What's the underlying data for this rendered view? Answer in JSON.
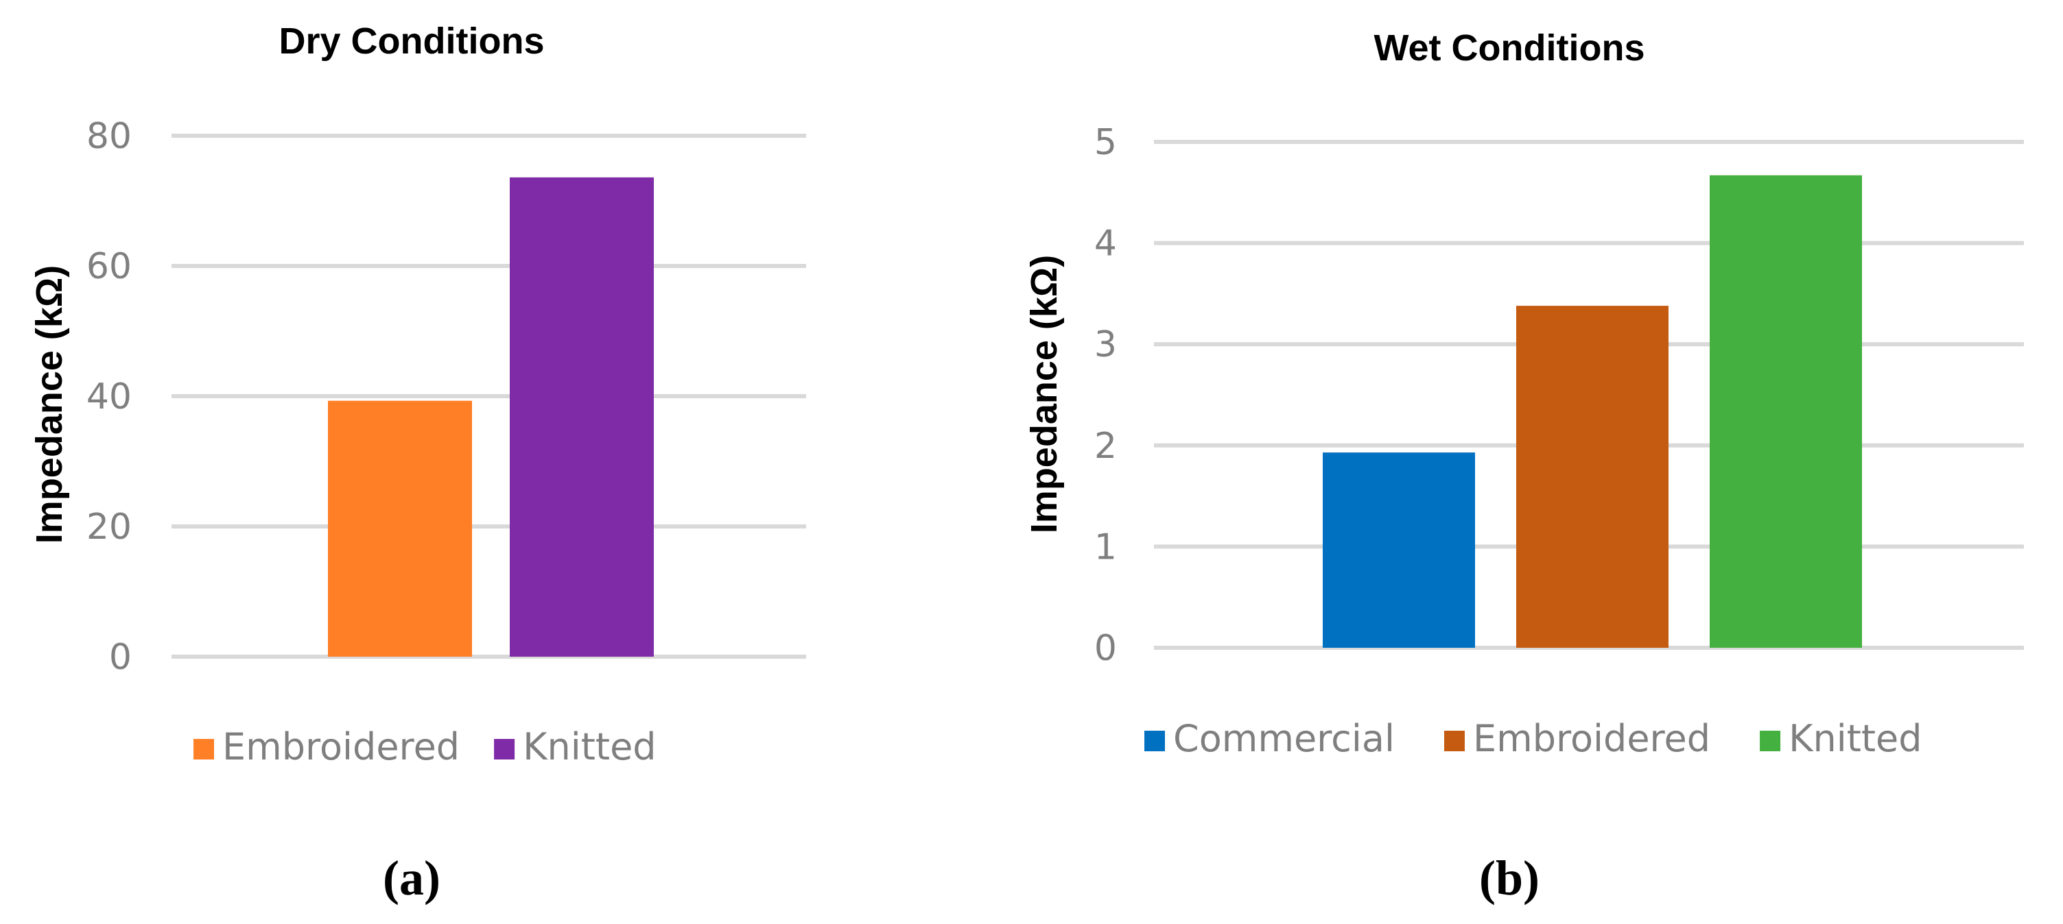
{
  "chart_data": [
    {
      "type": "bar",
      "title": "Dry Conditions",
      "xlabel": "",
      "ylabel": "Impedance (kΩ)",
      "ylim": [
        0,
        80
      ],
      "yticks": [
        0,
        20,
        40,
        60,
        80
      ],
      "grid": true,
      "legend_position": "bottom",
      "panel_label": "(a)",
      "series": [
        {
          "name": "Embroidered",
          "value": 39.3,
          "color": "#ff7f27"
        },
        {
          "name": "Knitted",
          "value": 73.6,
          "color": "#7f2aa6"
        }
      ]
    },
    {
      "type": "bar",
      "title": "Wet Conditions",
      "xlabel": "",
      "ylabel": "Impedance (kΩ)",
      "ylim": [
        0,
        5
      ],
      "yticks": [
        0,
        1,
        2,
        3,
        4,
        5
      ],
      "grid": true,
      "legend_position": "bottom",
      "panel_label": "(b)",
      "series": [
        {
          "name": "Commercial",
          "value": 1.93,
          "color": "#0070c0"
        },
        {
          "name": "Embroidered",
          "value": 3.38,
          "color": "#c55a11"
        },
        {
          "name": "Knitted",
          "value": 4.67,
          "color": "#44b03f"
        }
      ]
    }
  ]
}
